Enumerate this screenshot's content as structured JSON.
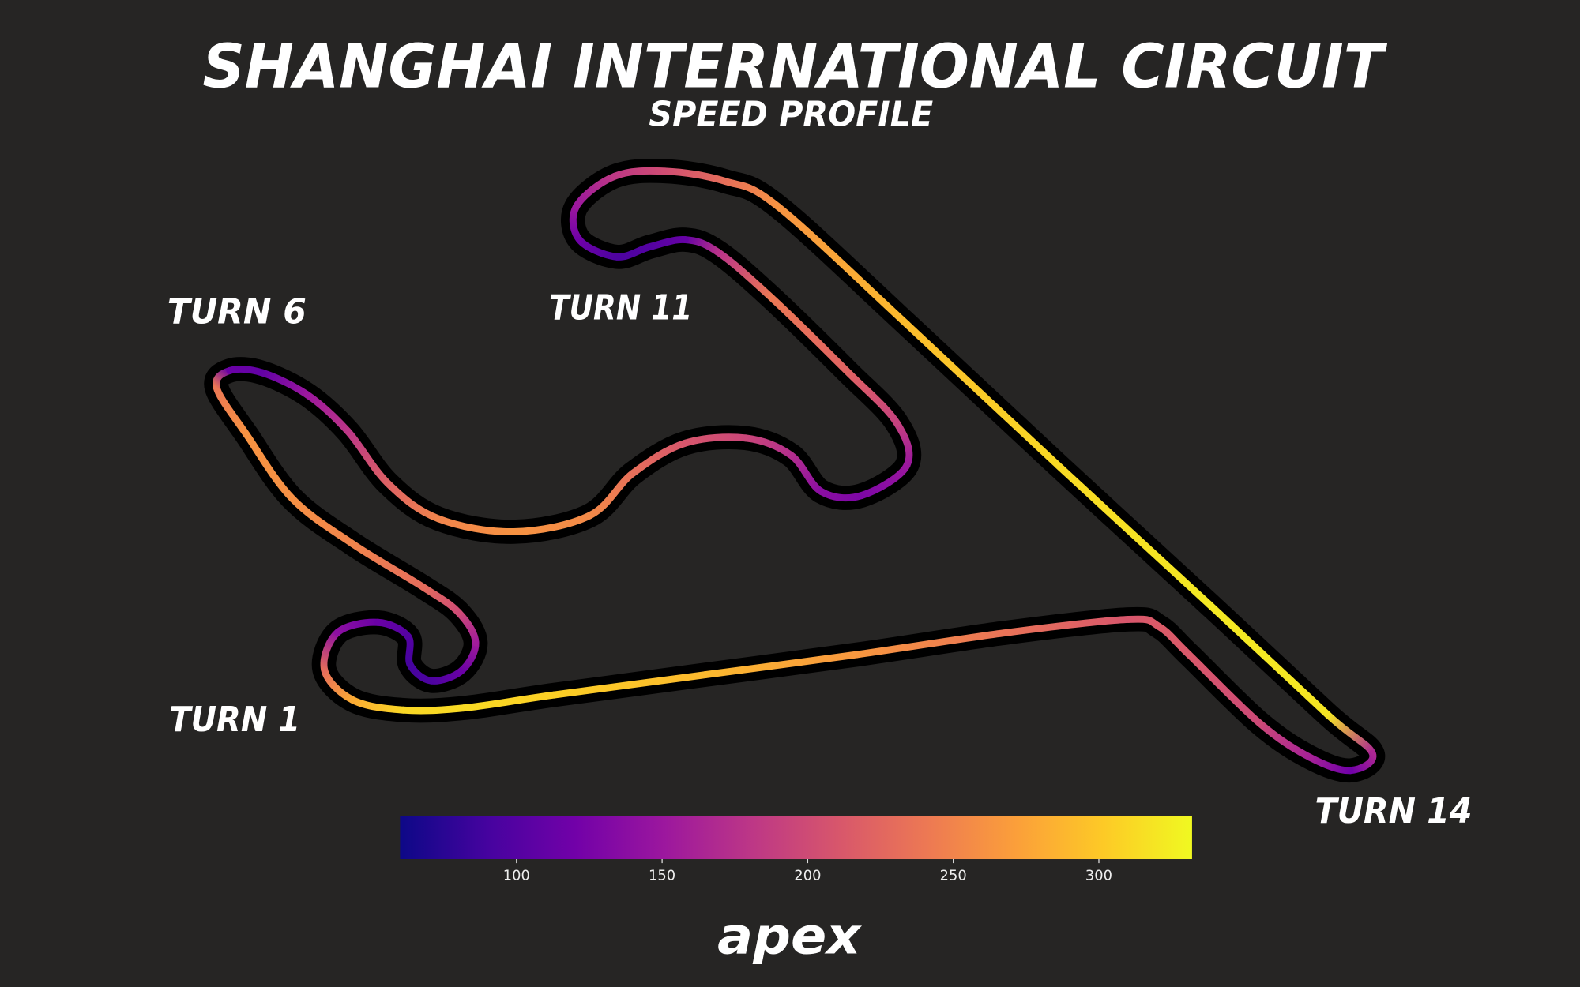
{
  "chart_data": {
    "type": "track",
    "title": "SHANGHAI INTERNATIONAL CIRCUIT",
    "subtitle": "SPEED PROFILE",
    "annotations": [
      "TURN 6",
      "TURN 11",
      "TURN 1",
      "TURN 14"
    ],
    "logo": "apex",
    "speeds": [
      210,
      235,
      265,
      290,
      305,
      312,
      310,
      280,
      230,
      140,
      115,
      100,
      90,
      95,
      115,
      155,
      200,
      230,
      250,
      260,
      262,
      240,
      115,
      110,
      150,
      180,
      220,
      250,
      262,
      255,
      232,
      210,
      195,
      172,
      138,
      128,
      150,
      190,
      222,
      240,
      175,
      112,
      100,
      95,
      118,
      150,
      182,
      202,
      232,
      262,
      292,
      312,
      322,
      320,
      165,
      120,
      160,
      198,
      212,
      215
    ],
    "zlim": [
      60,
      332
    ],
    "zticks": [
      100,
      150,
      200,
      250,
      300
    ],
    "colors": [
      "#0d0887",
      "#46039f",
      "#7201a8",
      "#9c179e",
      "#bd3786",
      "#d8576b",
      "#ed7953",
      "#fb9f3a",
      "#fdca26",
      "#f0f921"
    ]
  }
}
